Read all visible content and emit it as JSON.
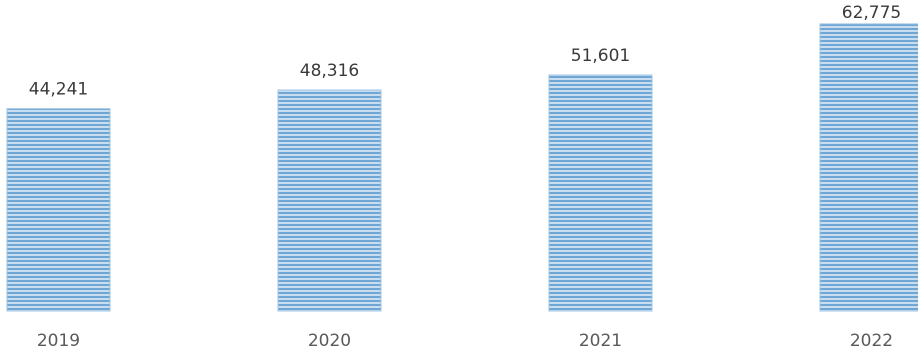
{
  "chart_data": {
    "type": "bar",
    "title": "",
    "xlabel": "",
    "ylabel": "",
    "categories": [
      "2019",
      "2020",
      "2021",
      "2022"
    ],
    "values": [
      44241,
      48316,
      51601,
      62775
    ],
    "value_labels": [
      "44,241",
      "48,316",
      "51,601",
      "62,775"
    ],
    "ylim": [
      0,
      68000
    ],
    "grid": false,
    "legend": "none",
    "bar_color": "#9fc4e3",
    "bar_stripe_color": "#5e9ccf",
    "value_label_color": "#3a3a3a",
    "category_label_color": "#5a5a5a"
  }
}
